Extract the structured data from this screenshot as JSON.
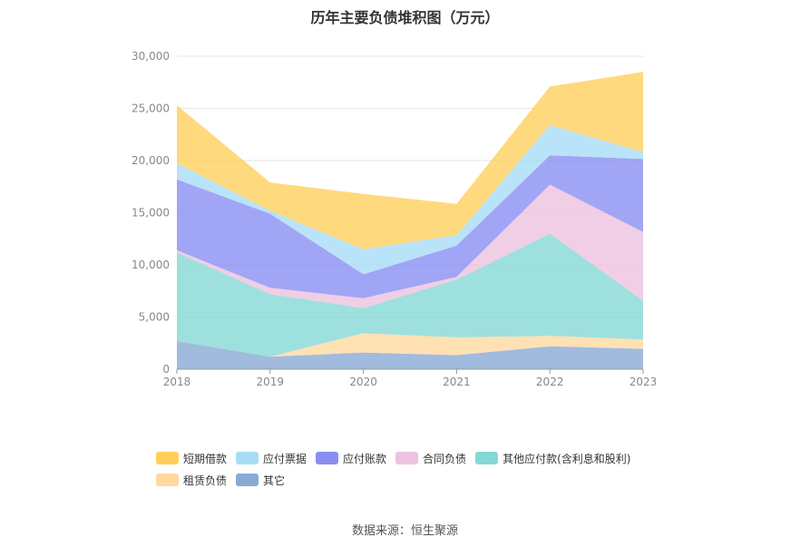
{
  "title": "历年主要负债堆积图（万元）",
  "source": "数据来源：恒生聚源",
  "chart_data": {
    "type": "area",
    "stacked": true,
    "categories": [
      "2018",
      "2019",
      "2020",
      "2021",
      "2022",
      "2023"
    ],
    "ylim": [
      0,
      30000
    ],
    "yticks": [
      0,
      5000,
      10000,
      15000,
      20000,
      25000,
      30000
    ],
    "ytick_labels": [
      "0",
      "5,000",
      "10,000",
      "15,000",
      "20,000",
      "25,000",
      "30,000"
    ],
    "grid": true,
    "legend_position": "bottom",
    "series": [
      {
        "name": "其它",
        "color": "#8aaad6",
        "values": [
          2700,
          1200,
          1600,
          1350,
          2200,
          1950
        ]
      },
      {
        "name": "租赁负债",
        "color": "#ffd9a0",
        "values": [
          0,
          0,
          1850,
          1700,
          1000,
          900
        ]
      },
      {
        "name": "其他应付款(含利息和股利)",
        "color": "#86d8d6",
        "values": [
          8500,
          6000,
          2400,
          5550,
          9800,
          3700
        ]
      },
      {
        "name": "合同负债",
        "color": "#ecc2e0",
        "values": [
          200,
          600,
          950,
          250,
          4700,
          6600
        ]
      },
      {
        "name": "应付账款",
        "color": "#8a8ef2",
        "values": [
          6800,
          7100,
          2300,
          3000,
          2800,
          7000
        ]
      },
      {
        "name": "应付票据",
        "color": "#a8dcf6",
        "values": [
          1550,
          300,
          2400,
          1000,
          2900,
          650
        ]
      },
      {
        "name": "短期借款",
        "color": "#ffcf5c",
        "values": [
          5550,
          2700,
          5300,
          3000,
          3700,
          7700
        ]
      }
    ],
    "legend_order": [
      "短期借款",
      "应付票据",
      "应付账款",
      "合同负债",
      "其他应付款(含利息和股利)",
      "租赁负债",
      "其它"
    ]
  }
}
